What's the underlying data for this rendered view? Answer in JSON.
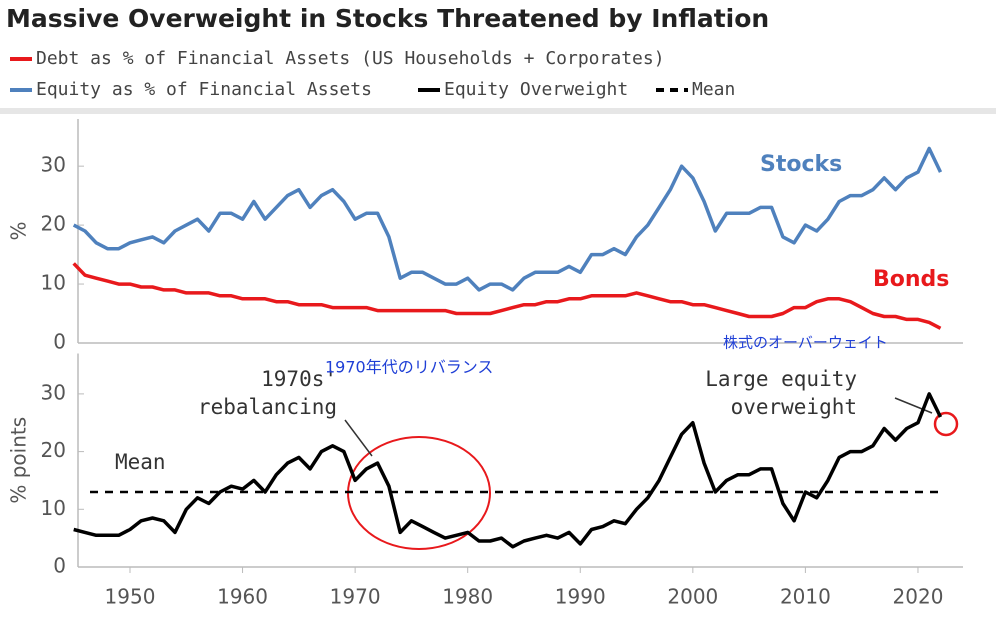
{
  "title": "Massive Overweight in Stocks Threatened by Inflation",
  "chart_data": [
    {
      "type": "line",
      "ylabel": "%",
      "xlim": [
        1945,
        2024
      ],
      "ylim": [
        0,
        38
      ],
      "yticks": [
        0,
        10,
        20,
        30
      ],
      "x": [
        1945,
        1946,
        1947,
        1948,
        1949,
        1950,
        1951,
        1952,
        1953,
        1954,
        1955,
        1956,
        1957,
        1958,
        1959,
        1960,
        1961,
        1962,
        1963,
        1964,
        1965,
        1966,
        1967,
        1968,
        1969,
        1970,
        1971,
        1972,
        1973,
        1974,
        1975,
        1976,
        1977,
        1978,
        1979,
        1980,
        1981,
        1982,
        1983,
        1984,
        1985,
        1986,
        1987,
        1988,
        1989,
        1990,
        1991,
        1992,
        1993,
        1994,
        1995,
        1996,
        1997,
        1998,
        1999,
        2000,
        2001,
        2002,
        2003,
        2004,
        2005,
        2006,
        2007,
        2008,
        2009,
        2010,
        2011,
        2012,
        2013,
        2014,
        2015,
        2016,
        2017,
        2018,
        2019,
        2020,
        2021,
        2022
      ],
      "series": [
        {
          "name": "Debt as % of Financial Assets (US Households + Corporates)",
          "color": "#e8191c",
          "values": [
            13.5,
            11.5,
            11,
            10.5,
            10,
            10,
            9.5,
            9.5,
            9,
            9,
            8.5,
            8.5,
            8.5,
            8,
            8,
            7.5,
            7.5,
            7.5,
            7,
            7,
            6.5,
            6.5,
            6.5,
            6,
            6,
            6,
            6,
            5.5,
            5.5,
            5.5,
            5.5,
            5.5,
            5.5,
            5.5,
            5,
            5,
            5,
            5,
            5.5,
            6,
            6.5,
            6.5,
            7,
            7,
            7.5,
            7.5,
            8,
            8,
            8,
            8,
            8.5,
            8,
            7.5,
            7,
            7,
            6.5,
            6.5,
            6,
            5.5,
            5,
            4.5,
            4.5,
            4.5,
            5,
            6,
            6,
            7,
            7.5,
            7.5,
            7,
            6,
            5,
            4.5,
            4.5,
            4,
            4,
            3.5,
            2.5
          ]
        },
        {
          "name": "Equity as % of Financial Assets",
          "color": "#4f81bd",
          "values": [
            20,
            19,
            17,
            16,
            16,
            17,
            17.5,
            18,
            17,
            19,
            20,
            21,
            19,
            22,
            22,
            21,
            24,
            21,
            23,
            25,
            26,
            23,
            25,
            26,
            24,
            21,
            22,
            22,
            18,
            11,
            12,
            12,
            11,
            10,
            10,
            11,
            9,
            10,
            10,
            9,
            11,
            12,
            12,
            12,
            13,
            12,
            15,
            15,
            16,
            15,
            18,
            20,
            23,
            26,
            30,
            28,
            24,
            19,
            22,
            22,
            22,
            23,
            23,
            18,
            17,
            20,
            19,
            21,
            24,
            25,
            25,
            26,
            28,
            26,
            28,
            29,
            33,
            29
          ]
        }
      ],
      "annotations": [
        {
          "text": "Stocks",
          "color": "#4f81bd"
        },
        {
          "text": "Bonds",
          "color": "#e8191c"
        },
        {
          "text": "株式のオーバーウェイト",
          "color": "#1f3fd6"
        }
      ]
    },
    {
      "type": "line",
      "ylabel": "% points",
      "xlim": [
        1945,
        2024
      ],
      "ylim": [
        0,
        37
      ],
      "yticks": [
        0,
        10,
        20,
        30
      ],
      "xticks": [
        1950,
        1960,
        1970,
        1980,
        1990,
        2000,
        2010,
        2020
      ],
      "x": [
        1945,
        1946,
        1947,
        1948,
        1949,
        1950,
        1951,
        1952,
        1953,
        1954,
        1955,
        1956,
        1957,
        1958,
        1959,
        1960,
        1961,
        1962,
        1963,
        1964,
        1965,
        1966,
        1967,
        1968,
        1969,
        1970,
        1971,
        1972,
        1973,
        1974,
        1975,
        1976,
        1977,
        1978,
        1979,
        1980,
        1981,
        1982,
        1983,
        1984,
        1985,
        1986,
        1987,
        1988,
        1989,
        1990,
        1991,
        1992,
        1993,
        1994,
        1995,
        1996,
        1997,
        1998,
        1999,
        2000,
        2001,
        2002,
        2003,
        2004,
        2005,
        2006,
        2007,
        2008,
        2009,
        2010,
        2011,
        2012,
        2013,
        2014,
        2015,
        2016,
        2017,
        2018,
        2019,
        2020,
        2021,
        2022
      ],
      "series": [
        {
          "name": "Equity Overweight",
          "color": "#000000",
          "values": [
            6.5,
            6,
            5.5,
            5.5,
            5.5,
            6.5,
            8,
            8.5,
            8,
            6,
            10,
            12,
            11,
            13,
            14,
            13.5,
            15,
            13,
            16,
            18,
            19,
            17,
            20,
            21,
            20,
            15,
            17,
            18,
            14,
            6,
            8,
            7,
            6,
            5,
            5.5,
            6,
            4.5,
            4.5,
            5,
            3.5,
            4.5,
            5,
            5.5,
            5,
            6,
            4,
            6.5,
            7,
            8,
            7.5,
            10,
            12,
            15,
            19,
            23,
            25,
            18,
            13,
            15,
            16,
            16,
            17,
            17,
            11,
            8,
            13,
            12,
            15,
            19,
            20,
            20,
            21,
            24,
            22,
            24,
            25,
            30,
            26
          ]
        }
      ],
      "mean": {
        "name": "Mean",
        "value": 13,
        "color": "#000000"
      },
      "annotations": [
        {
          "lines": [
            "1970s'",
            "rebalancing"
          ],
          "color": "#333333"
        },
        {
          "text": "1970年代のリバランス",
          "color": "#1f3fd6"
        },
        {
          "text": "Mean",
          "color": "#333333"
        },
        {
          "lines": [
            "Large equity",
            "overweight"
          ],
          "color": "#333333"
        }
      ]
    }
  ]
}
